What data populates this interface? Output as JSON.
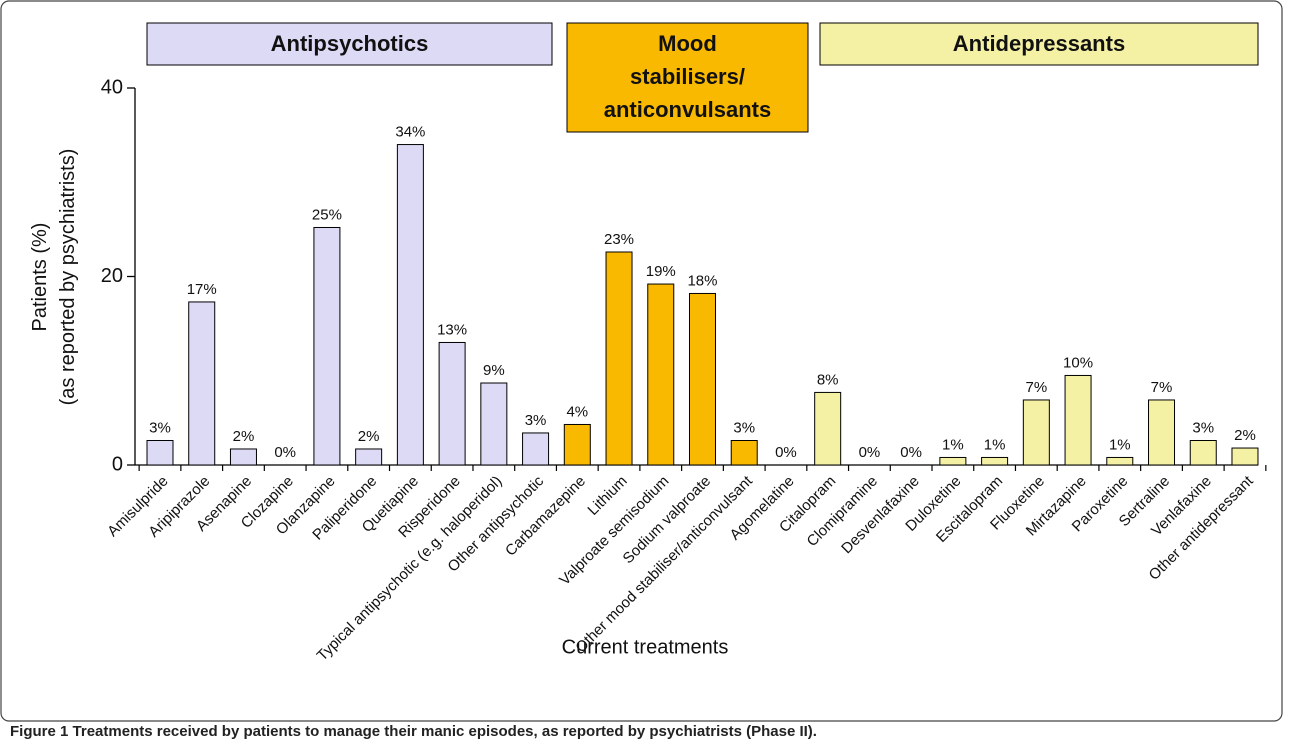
{
  "chart_data": {
    "type": "bar",
    "groups": [
      {
        "lines": [
          "Antipsychotics"
        ],
        "color": "#dddaf6"
      },
      {
        "lines": [
          "Mood",
          "stabilisers/",
          "anticonvulsants"
        ],
        "color": "#f9b900"
      },
      {
        "lines": [
          "Antidepressants"
        ],
        "color": "#f4f1a4"
      }
    ],
    "categories": [
      "Amisulpride",
      "Aripiprazole",
      "Asenapine",
      "Clozapine",
      "Olanzapine",
      "Paliperidone",
      "Quetiapine",
      "Risperidone",
      "Typical antipsychotic (e.g. haloperidol)",
      "Other antipsychotic",
      "Carbamazepine",
      "Lithium",
      "Valproate semisodium",
      "Sodium valproate",
      "Other mood stabiliser/anticonvulsant",
      "Agomelatine",
      "Citalopram",
      "Clomipramine",
      "Desvenlafaxine",
      "Duloxetine",
      "Escitalopram",
      "Fluoxetine",
      "Mirtazapine",
      "Paroxetine",
      "Sertraline",
      "Venlafaxine",
      "Other antidepressant"
    ],
    "values": [
      2.6,
      17.3,
      1.7,
      0,
      25.2,
      1.7,
      34.0,
      13.0,
      8.7,
      3.4,
      4.3,
      22.6,
      19.2,
      18.2,
      2.6,
      0,
      7.7,
      0,
      0,
      0.8,
      0.8,
      6.9,
      9.5,
      0.8,
      6.9,
      2.6,
      1.8
    ],
    "value_labels": [
      "3%",
      "17%",
      "2%",
      "0%",
      "25%",
      "2%",
      "34%",
      "13%",
      "9%",
      "3%",
      "4%",
      "23%",
      "19%",
      "18%",
      "3%",
      "0%",
      "8%",
      "0%",
      "0%",
      "1%",
      "1%",
      "7%",
      "10%",
      "1%",
      "7%",
      "3%",
      "2%"
    ],
    "colors": [
      "#dddaf6",
      "#dddaf6",
      "#dddaf6",
      "#dddaf6",
      "#dddaf6",
      "#dddaf6",
      "#dddaf6",
      "#dddaf6",
      "#dddaf6",
      "#dddaf6",
      "#f9b900",
      "#f9b900",
      "#f9b900",
      "#f9b900",
      "#f9b900",
      "#f4f1a4",
      "#f4f1a4",
      "#f4f1a4",
      "#f4f1a4",
      "#f4f1a4",
      "#f4f1a4",
      "#f4f1a4",
      "#f4f1a4",
      "#f4f1a4",
      "#f4f1a4",
      "#f4f1a4",
      "#f4f1a4"
    ],
    "ylim": [
      0,
      40
    ],
    "yticks": [
      0,
      20,
      40
    ],
    "y_label": [
      "Patients (%)",
      "(as reported by psychiatrists)"
    ],
    "x_label": "Current treatments",
    "caption": {
      "label": "Figure 1",
      "text": "Treatments received by patients to manage their manic episodes, as reported by psychiatrists (Phase II)."
    }
  }
}
